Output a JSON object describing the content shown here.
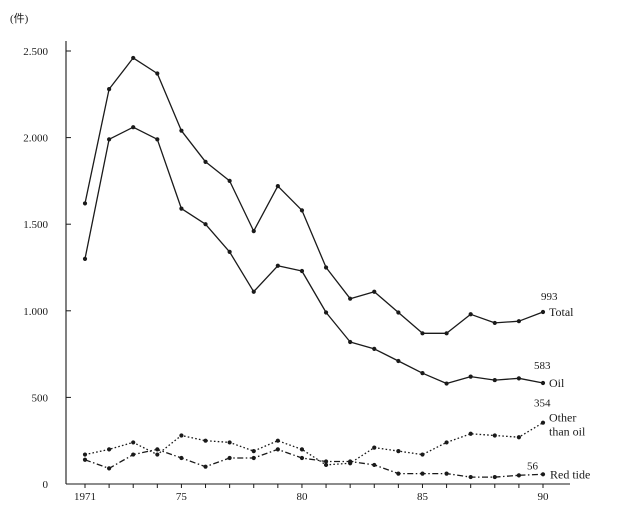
{
  "chart_data": {
    "type": "line",
    "unit_label": "(件)",
    "x": [
      1971,
      1972,
      1973,
      1974,
      1975,
      1976,
      1977,
      1978,
      1979,
      1980,
      1981,
      1982,
      1983,
      1984,
      1985,
      1986,
      1987,
      1988,
      1989,
      1990
    ],
    "x_tick_labels": [
      {
        "value": 1971,
        "label": "1971"
      },
      {
        "value": 1975,
        "label": "75"
      },
      {
        "value": 1980,
        "label": "80"
      },
      {
        "value": 1985,
        "label": "85"
      },
      {
        "value": 1990,
        "label": "90"
      }
    ],
    "y_tick_labels": [
      {
        "value": 0,
        "label": "0"
      },
      {
        "value": 500,
        "label": "500"
      },
      {
        "value": 1000,
        "label": "1.000"
      },
      {
        "value": 1500,
        "label": "1.500"
      },
      {
        "value": 2000,
        "label": "2.000"
      },
      {
        "value": 2500,
        "label": "2.500"
      }
    ],
    "xlim": [
      1970.5,
      1991
    ],
    "ylim": [
      0,
      2500
    ],
    "series": [
      {
        "name": "Total",
        "end_value": "993",
        "style": "solid",
        "marker": true,
        "values": [
          1620,
          2280,
          2460,
          2370,
          2040,
          1860,
          1750,
          1460,
          1720,
          1580,
          1250,
          1070,
          1110,
          990,
          870,
          870,
          980,
          930,
          940,
          993
        ]
      },
      {
        "name": "Oil",
        "end_value": "583",
        "style": "solid",
        "marker": true,
        "values": [
          1300,
          1990,
          2060,
          1990,
          1590,
          1500,
          1340,
          1110,
          1260,
          1230,
          990,
          820,
          780,
          710,
          640,
          580,
          620,
          600,
          610,
          583
        ]
      },
      {
        "name": "Other than oil",
        "name_lines": [
          "Other",
          "than oil"
        ],
        "end_value": "354",
        "style": "dotted",
        "marker": true,
        "values": [
          170,
          200,
          240,
          170,
          280,
          250,
          240,
          190,
          250,
          200,
          110,
          120,
          210,
          190,
          170,
          240,
          290,
          280,
          270,
          354
        ]
      },
      {
        "name": "Red tide",
        "end_value": "56",
        "style": "dashdot",
        "marker": true,
        "values": [
          140,
          90,
          170,
          200,
          150,
          100,
          150,
          150,
          200,
          150,
          130,
          130,
          110,
          60,
          60,
          60,
          40,
          40,
          50,
          56
        ]
      }
    ]
  }
}
